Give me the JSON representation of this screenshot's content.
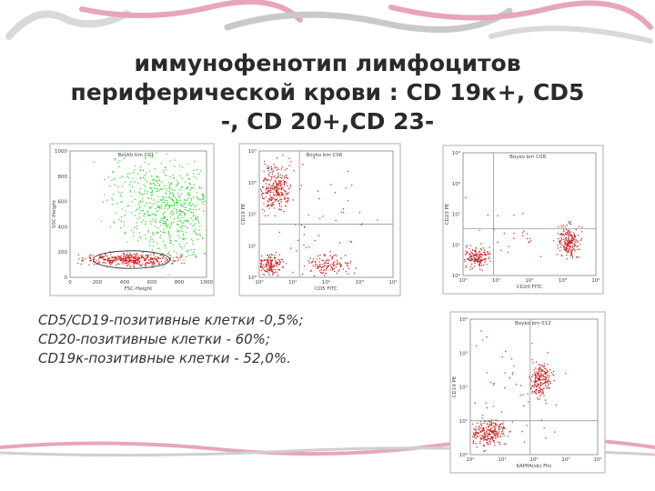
{
  "title_lines": [
    "иммунофенотип лимфоцитов",
    "периферической крови : CD 19κ+, CD5",
    "-, CD 20+,CD 23-"
  ],
  "notes": [
    "CD5/CD19-позитивные клетки -0,5%;",
    "CD20-позитивные клетки - 60%;",
    "CD19κ-позитивные клетки - 52,0%."
  ],
  "plots": [
    {
      "label": "Boyko bm C01",
      "x_label": "FSC-Height",
      "y_label": "SSC-Height",
      "x_ticks": [
        "0",
        "200",
        "400",
        "600",
        "800",
        "1000"
      ],
      "y_ticks": [
        "0",
        "200",
        "400",
        "600",
        "800",
        "1000"
      ]
    },
    {
      "label": "Boyko bm C06",
      "x_label": "CD5 FITC",
      "y_label": "CD19 PE",
      "x_ticks": [
        "10⁰",
        "10¹",
        "10²",
        "10³",
        "10⁴"
      ],
      "y_ticks": [
        "10⁰",
        "10¹",
        "10²",
        "10³",
        "10⁴"
      ]
    },
    {
      "label": "Boyko bm C08",
      "x_label": "CD20 FITC",
      "y_label": "CD23 PE",
      "x_ticks": [
        "10⁰",
        "10¹",
        "10²",
        "10³",
        "10⁴"
      ],
      "y_ticks": [
        "10⁰",
        "10¹",
        "10²",
        "10³",
        "10⁴"
      ]
    },
    {
      "label": "Boyko bm 012",
      "x_label": "KAPPA(sb) Fitc",
      "y_label": "CD19 PE",
      "x_ticks": [
        "10⁰",
        "10¹",
        "10²",
        "10³",
        "10⁴"
      ],
      "y_ticks": [
        "10⁰",
        "10¹",
        "10²",
        "10³",
        "10⁴"
      ]
    }
  ]
}
